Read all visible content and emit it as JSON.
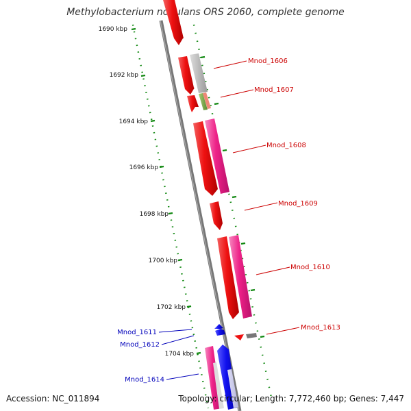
{
  "title": "Methylobacterium nodulans ORS 2060, complete genome",
  "accession": "Accession: NC_011894",
  "topology": "Topology: circular; Length: 7,772,460 bp; Genes: 7,447",
  "scale_labels": [
    "1690 kbp",
    "1692 kbp",
    "1694 kbp",
    "1696 kbp",
    "1698 kbp",
    "1700 kbp",
    "1702 kbp",
    "1704 kbp"
  ],
  "gene_labels_right": [
    "Mnod_1606",
    "Mnod_1607",
    "Mnod_1608",
    "Mnod_1609",
    "Mnod_1610",
    "Mnod_1613"
  ],
  "gene_labels_left": [
    "Mnod_1611",
    "Mnod_1612",
    "Mnod_1614"
  ],
  "colors": {
    "backbone": "#777777",
    "scale_ticks": "#118811",
    "red_gene": "#ee1111",
    "pink_gene": "#ee2288",
    "grey_gene": "#bbbbbb",
    "green_gene": "#77aa44",
    "salmon_gene": "#ee8877",
    "blue_gene": "#1111ee",
    "label_right": "#cc0000",
    "label_left": "#0000bb"
  }
}
